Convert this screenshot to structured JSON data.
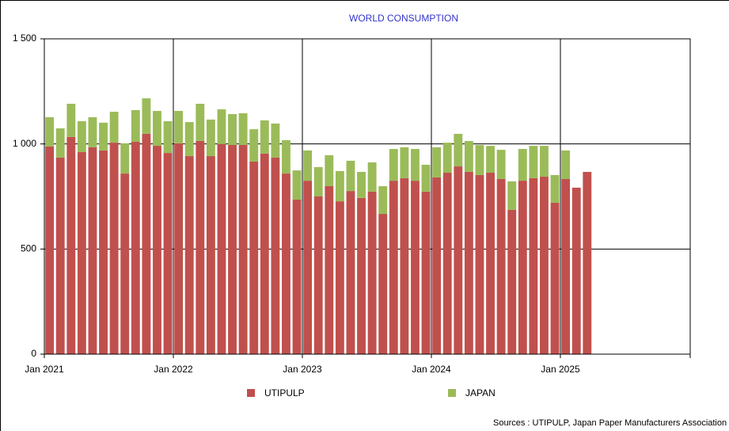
{
  "chart_data": {
    "type": "stacked-bar",
    "title": "WORLD CONSUMPTION",
    "categories": [
      "Jan 2021",
      null,
      null,
      null,
      null,
      null,
      null,
      null,
      null,
      null,
      null,
      null,
      "Jan 2022",
      null,
      null,
      null,
      null,
      null,
      null,
      null,
      null,
      null,
      null,
      null,
      "Jan 2023",
      null,
      null,
      null,
      null,
      null,
      null,
      null,
      null,
      null,
      null,
      null,
      "Jan 2024",
      null,
      null,
      null,
      null,
      null,
      null,
      null,
      null,
      null,
      null,
      null,
      "Jan 2025",
      null,
      null
    ],
    "series": [
      {
        "name": "UTIPULP",
        "color": "#c0504d",
        "values": [
          988,
          935,
          1033,
          961,
          984,
          969,
          1006,
          859,
          1010,
          1048,
          991,
          957,
          1003,
          942,
          1014,
          942,
          999,
          995,
          995,
          916,
          954,
          935,
          859,
          735,
          825,
          750,
          799,
          727,
          776,
          743,
          773,
          667,
          825,
          837,
          825,
          773,
          841,
          863,
          893,
          867,
          852,
          863,
          833,
          686,
          825,
          837,
          844,
          720,
          833,
          792,
          867
        ]
      },
      {
        "name": "JAPAN",
        "color": "#9bbb59",
        "values": [
          139,
          139,
          158,
          147,
          143,
          132,
          147,
          144,
          151,
          169,
          166,
          151,
          154,
          162,
          177,
          174,
          166,
          147,
          151,
          154,
          158,
          162,
          159,
          139,
          144,
          140,
          147,
          144,
          144,
          124,
          139,
          132,
          151,
          147,
          151,
          128,
          143,
          143,
          155,
          147,
          143,
          128,
          139,
          136,
          151,
          154,
          147,
          132,
          136,
          null,
          null
        ]
      }
    ],
    "ylim": [
      0,
      1500
    ],
    "yticks": [
      0,
      500,
      {
        "value": 1000,
        "label": "1 000"
      },
      {
        "value": 1500,
        "label": "1 500"
      }
    ],
    "grid": true,
    "legend": "bottom",
    "source": "Sources : UTIPULP, Japan Paper Manufacturers Association"
  }
}
